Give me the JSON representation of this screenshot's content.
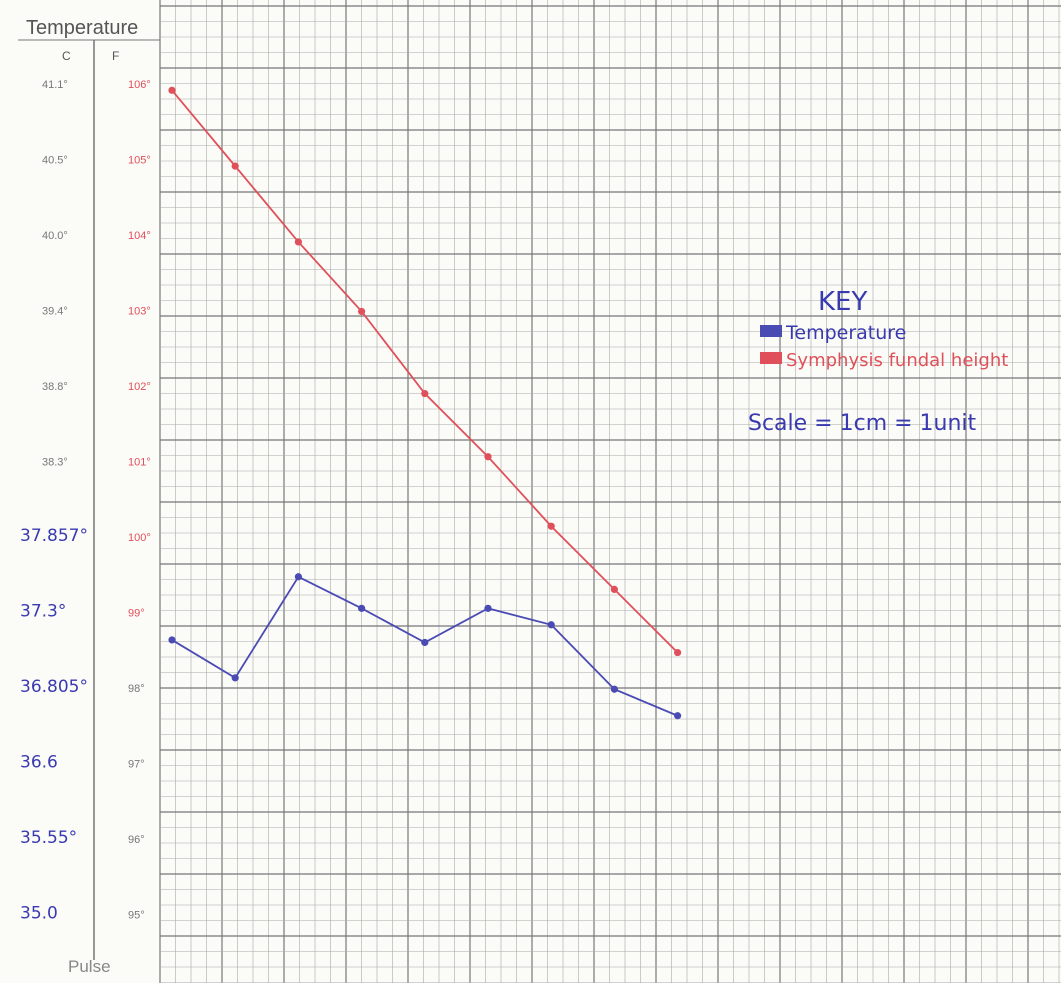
{
  "chart_data": {
    "type": "line",
    "title": "Temperature",
    "axes": {
      "y_left_celsius": {
        "label": "C",
        "ticks": [
          "41.1°",
          "40.5°",
          "40.0°",
          "39.4°",
          "38.8°",
          "38.3°",
          "37.857°",
          "37.3°",
          "36.805°",
          "36.6",
          "35.55°",
          "35.0"
        ]
      },
      "y_right_fahrenheit": {
        "label": "F",
        "ticks": [
          "106°",
          "105°",
          "104°",
          "103°",
          "102°",
          "101°",
          "100°",
          "99°",
          "98°",
          "97°",
          "96°",
          "95°"
        ]
      },
      "bottom_label": "Pulse"
    },
    "series": [
      {
        "name": "Temperature",
        "color": "#4b4bb4",
        "values": [
          36.8,
          36.5,
          37.3,
          37.05,
          36.78,
          37.05,
          36.92,
          36.41,
          36.2
        ]
      },
      {
        "name": "Symphysis fundal height",
        "color": "#e0505a",
        "values": [
          41.15,
          40.55,
          39.95,
          39.4,
          38.75,
          38.25,
          37.7,
          37.2,
          36.7
        ]
      }
    ],
    "legend": {
      "title": "KEY",
      "items": [
        {
          "label": "Temperature",
          "color": "#4b4bb4"
        },
        {
          "label": "Symphysis fundal height",
          "color": "#e0505a"
        }
      ],
      "position": "right"
    },
    "scale_note": "Scale = 1cm = 1unit",
    "y_range": [
      34.9,
      41.2
    ],
    "grid": true
  }
}
